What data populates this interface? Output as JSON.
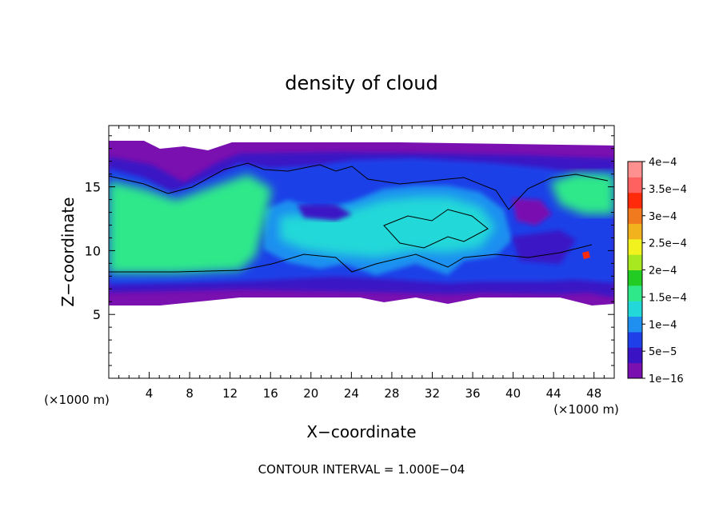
{
  "chart_data": {
    "type": "heatmap",
    "title": "density of cloud",
    "xlabel": "X−coordinate",
    "ylabel": "Z−coordinate",
    "x_unit_left": "(×1000 m)",
    "x_unit_right": "(×1000 m)",
    "footer": "CONTOUR INTERVAL = 1.000E−04",
    "xlim": [
      0,
      50
    ],
    "ylim": [
      0,
      19.8
    ],
    "x_ticks": [
      4,
      8,
      12,
      16,
      20,
      24,
      28,
      32,
      36,
      40,
      44,
      48
    ],
    "x_tick_labels": [
      "4",
      "8",
      "12",
      "16",
      "20",
      "24",
      "28",
      "32",
      "36",
      "40",
      "44",
      "48"
    ],
    "y_ticks": [
      5,
      10,
      15
    ],
    "y_tick_labels": [
      "5",
      "10",
      "15"
    ],
    "colorbar": {
      "levels": [
        1e-16,
        5e-05,
        0.0001,
        0.00015,
        0.0002,
        0.00025,
        0.0003,
        0.00035,
        0.0004
      ],
      "labels": [
        "1e−16",
        "5e−5",
        "1e−4",
        "1.5e−4",
        "2e−4",
        "2.5e−4",
        "3e−4",
        "3.5e−4",
        "4e−4"
      ],
      "colors": [
        "#7a10b0",
        "#3a14c4",
        "#1f3fe8",
        "#1f8ff0",
        "#22d8d8",
        "#2ee88a",
        "#22cc22",
        "#a8e820",
        "#f2f21e",
        "#f2b21e",
        "#f27a1e",
        "#ff2a0a",
        "#ff6060",
        "#ff9090"
      ]
    },
    "cloud_region": {
      "z_bottom": 6.0,
      "z_top": 18.3,
      "note": "cloud density field spanning full x range"
    }
  }
}
